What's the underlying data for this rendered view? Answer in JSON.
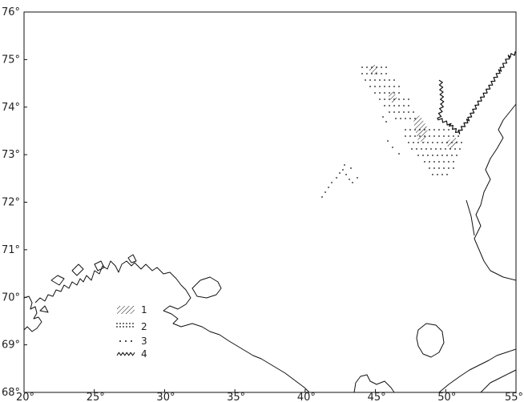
{
  "map": {
    "lon_labels": [
      "20°",
      "25°",
      "30°",
      "35°",
      "40°",
      "45°",
      "50°",
      "55°"
    ],
    "lat_labels": [
      "76°",
      "75°",
      "74°",
      "73°",
      "72°",
      "71°",
      "70°",
      "69°",
      "68°"
    ],
    "lon_range": [
      20,
      55
    ],
    "lat_range": [
      68,
      76
    ]
  },
  "legend": [
    {
      "label": "1",
      "symbol": "hatched"
    },
    {
      "label": "2",
      "symbol": "dense-dots"
    },
    {
      "label": "3",
      "symbol": "sparse-dots"
    },
    {
      "label": "4",
      "symbol": "zigzag"
    }
  ]
}
